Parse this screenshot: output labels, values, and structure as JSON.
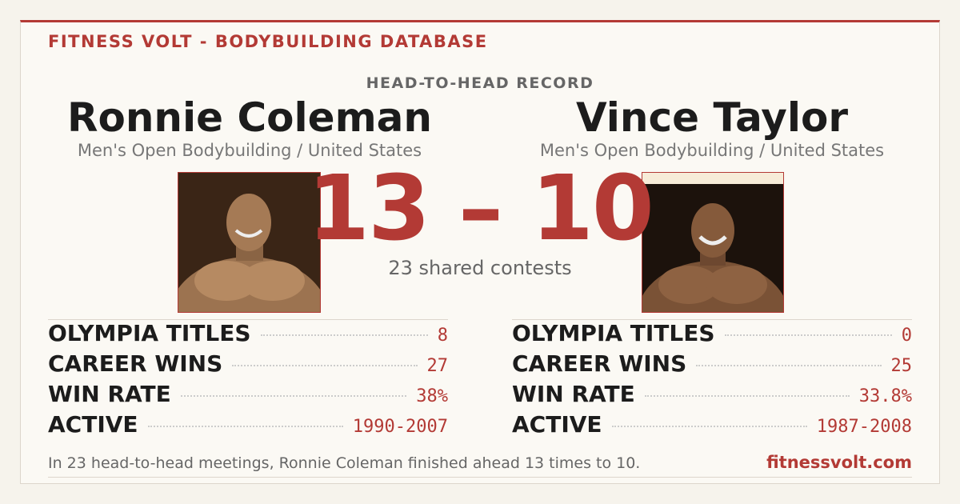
{
  "header": {
    "brand": "FITNESS VOLT - BODYBUILDING DATABASE",
    "kicker": "HEAD-TO-HEAD RECORD"
  },
  "left": {
    "name": "Ronnie Coleman",
    "division": "Men's Open Bodybuilding / United States",
    "stats": [
      {
        "label": "OLYMPIA TITLES",
        "value": 8
      },
      {
        "label": "CAREER WINS",
        "value": 27
      },
      {
        "label": "WIN RATE",
        "value": "38%"
      },
      {
        "label": "ACTIVE",
        "value": "1990-2007"
      }
    ]
  },
  "right": {
    "name": "Vince Taylor",
    "division": "Men's Open Bodybuilding / United States",
    "stats": [
      {
        "label": "OLYMPIA TITLES",
        "value": 0
      },
      {
        "label": "CAREER WINS",
        "value": 25
      },
      {
        "label": "WIN RATE",
        "value": "33.8%"
      },
      {
        "label": "ACTIVE",
        "value": "1987-2008"
      }
    ]
  },
  "score": {
    "left": 13,
    "separator": "–",
    "right": 10,
    "shared": "23 shared contests"
  },
  "footer": {
    "summary": "In 23 head-to-head meetings, Ronnie Coleman finished ahead 13 times to 10.",
    "site": "fitnessvolt.com"
  }
}
